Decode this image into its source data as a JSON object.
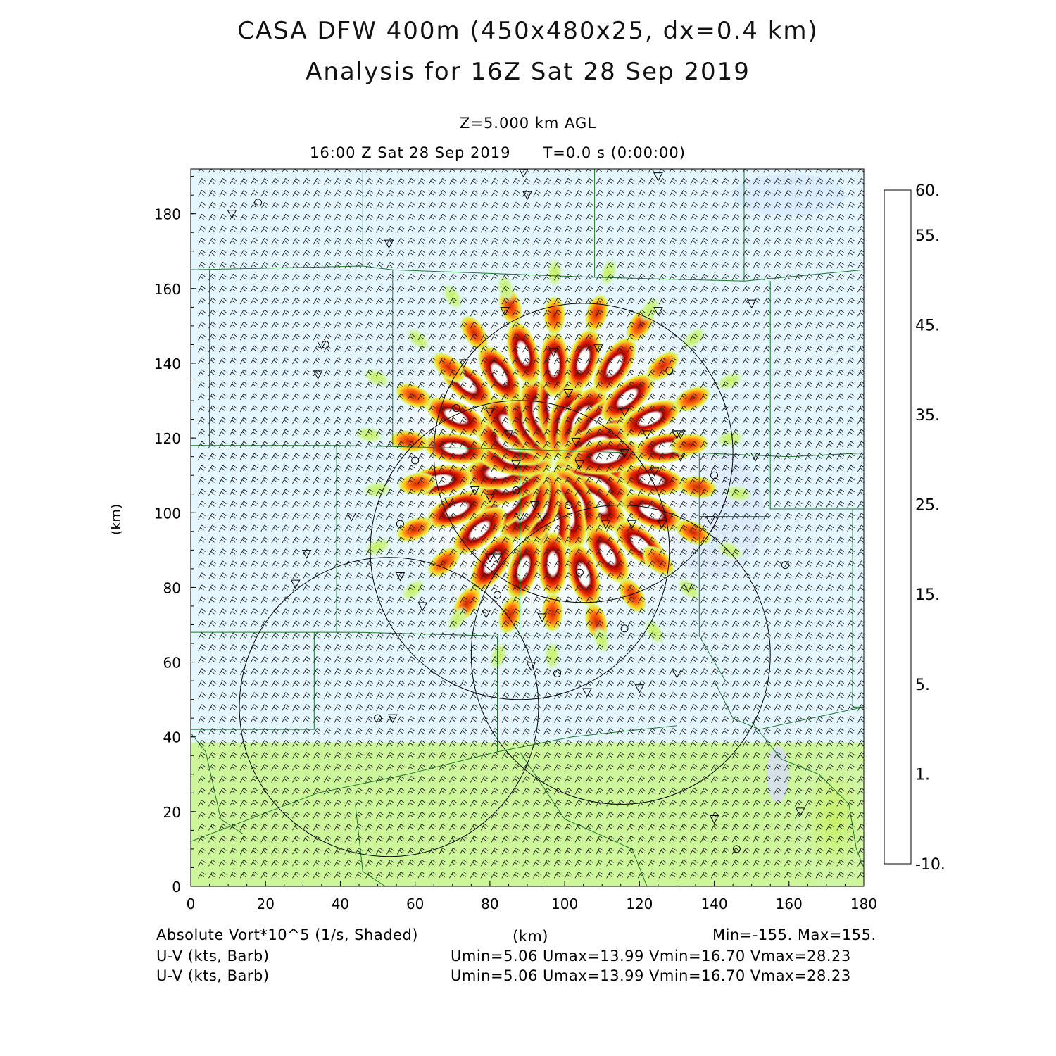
{
  "title": {
    "line1": "CASA DFW 400m (450x480x25, dx=0.4 km)",
    "line2": "Analysis for 16Z Sat 28 Sep 2019"
  },
  "level_label": "Z=5.000 km AGL",
  "valid_time": "16:00 Z Sat 28 Sep 2019",
  "forecast_time": "T=0.0 s (0:00:00)",
  "axes": {
    "x_label": "(km)",
    "y_label": "(km)",
    "x_ticks": [
      "0",
      "20",
      "40",
      "60",
      "80",
      "100",
      "120",
      "140",
      "160",
      "180"
    ],
    "y_ticks": [
      "0",
      "20",
      "40",
      "60",
      "80",
      "100",
      "120",
      "140",
      "160",
      "180"
    ],
    "x_range": [
      0,
      180
    ],
    "y_range": [
      0,
      192
    ]
  },
  "colorbar": {
    "labels": [
      "60.",
      "55.",
      "45.",
      "35.",
      "25.",
      "15.",
      "5.",
      "1.",
      "-10."
    ],
    "colors": [
      "#b00000",
      "#cc1000",
      "#e02800",
      "#ff4000",
      "#ff6a00",
      "#ff8c10",
      "#ffae20",
      "#ffd020",
      "#eaf230",
      "#ccf25a",
      "#bdf290",
      "#d6fbc9",
      "#d8dcfa",
      "#d6eaff",
      "#e8f8ff"
    ]
  },
  "fields": {
    "shaded": "Absolute Vort*10^5 (1/s, Shaded)",
    "minmax": "Min=-155. Max=155.",
    "barb1": "U-V (kts, Barb)",
    "barb2": "U-V (kts, Barb)",
    "uv_stats1": "Umin=5.06 Umax=13.99 Vmin=16.70 Vmax=28.23",
    "uv_stats2": "Umin=5.06 Umax=13.99 Vmin=16.70 Vmax=28.23"
  },
  "radar_rings_km": [
    {
      "x": 105,
      "y": 116,
      "r": 40
    },
    {
      "x": 88,
      "y": 90,
      "r": 40
    },
    {
      "x": 115,
      "y": 62,
      "r": 40
    },
    {
      "x": 53,
      "y": 48,
      "r": 40
    }
  ],
  "colors": {
    "background": "#e4f6ff",
    "south_band": "#cdf59a",
    "county_lines": "#1c7a2a",
    "ring_lines": "#000000"
  }
}
